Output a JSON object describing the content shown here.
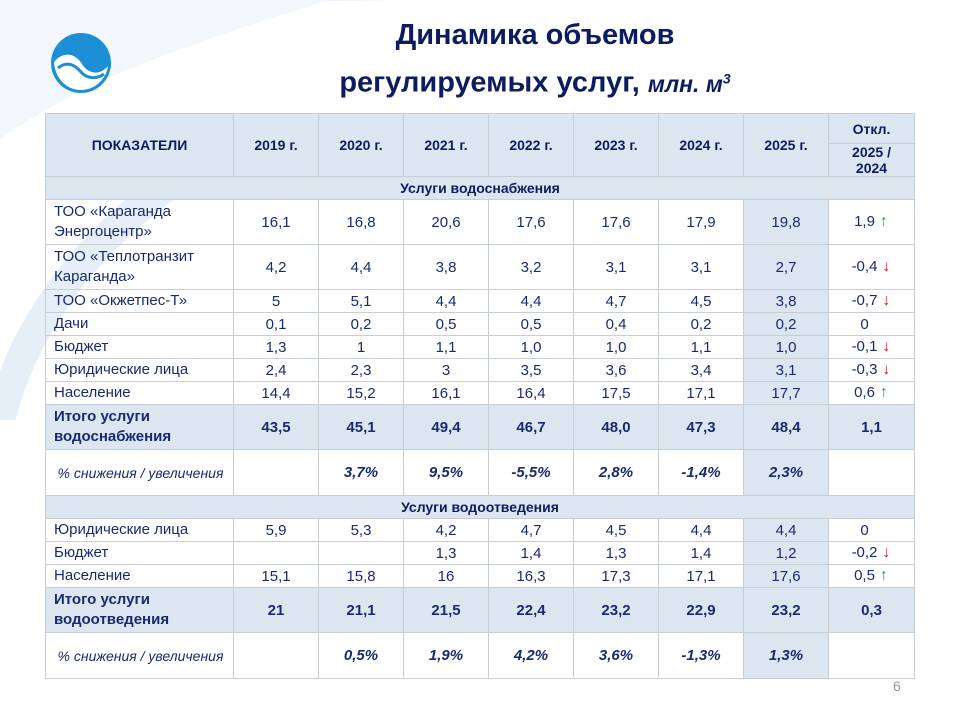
{
  "title": {
    "line1": "Динамика объемов",
    "line2": "регулируемых услуг,",
    "unit": "млн. м",
    "unit_sup": "3"
  },
  "colors": {
    "header_bg": "#dce6f1",
    "text": "#1a2a6e",
    "up": "#1aa13a",
    "down": "#d01818"
  },
  "header": {
    "indicator": "ПОКАЗАТЕЛИ",
    "years": [
      "2019 г.",
      "2020 г.",
      "2021 г.",
      "2022 г.",
      "2023 г.",
      "2024 г.",
      "2025 г."
    ],
    "dev_top": "Откл.",
    "dev_bottom": "2025 / 2024"
  },
  "sections": [
    {
      "title": "Услуги водоснабжения",
      "rows": [
        {
          "label": "ТОО «Караганда Энергоцентр»",
          "values": [
            "16,1",
            "16,8",
            "20,6",
            "17,6",
            "17,6",
            "17,9",
            "19,8"
          ],
          "dev": "1,9",
          "trend": "up"
        },
        {
          "label": "ТОО «Теплотранзит Караганда»",
          "values": [
            "4,2",
            "4,4",
            "3,8",
            "3,2",
            "3,1",
            "3,1",
            "2,7"
          ],
          "dev": "-0,4",
          "trend": "down"
        },
        {
          "label": "ТОО «Окжетпес-Т»",
          "values": [
            "5",
            "5,1",
            "4,4",
            "4,4",
            "4,7",
            "4,5",
            "3,8"
          ],
          "dev": "-0,7",
          "trend": "down"
        },
        {
          "label": "Дачи",
          "values": [
            "0,1",
            "0,2",
            "0,5",
            "0,5",
            "0,4",
            "0,2",
            "0,2"
          ],
          "dev": "0",
          "trend": ""
        },
        {
          "label": "Бюджет",
          "values": [
            "1,3",
            "1",
            "1,1",
            "1,0",
            "1,0",
            "1,1",
            "1,0"
          ],
          "dev": "-0,1",
          "trend": "down"
        },
        {
          "label": "Юридические лица",
          "values": [
            "2,4",
            "2,3",
            "3",
            "3,5",
            "3,6",
            "3,4",
            "3,1"
          ],
          "dev": "-0,3",
          "trend": "down"
        },
        {
          "label": "Население",
          "values": [
            "14,4",
            "15,2",
            "16,1",
            "16,4",
            "17,5",
            "17,1",
            "17,7"
          ],
          "dev": "0,6",
          "trend": "up"
        }
      ],
      "total": {
        "label": "Итого услуги водоснабжения",
        "values": [
          "43,5",
          "45,1",
          "49,4",
          "46,7",
          "48,0",
          "47,3",
          "48,4"
        ],
        "dev": "1,1"
      },
      "pct": {
        "label": "% снижения / увеличения",
        "values": [
          "",
          "3,7%",
          "9,5%",
          "-5,5%",
          "2,8%",
          "-1,4%",
          "2,3%"
        ]
      }
    },
    {
      "title": "Услуги водоотведения",
      "rows": [
        {
          "label": "Юридические лица",
          "values": [
            "5,9",
            "5,3",
            "4,2",
            "4,7",
            "4,5",
            "4,4",
            "4,4"
          ],
          "dev": "0",
          "trend": ""
        },
        {
          "label": "Бюджет",
          "values": [
            "",
            "",
            "1,3",
            "1,4",
            "1,3",
            "1,4",
            "1,2"
          ],
          "dev": "-0,2",
          "trend": "down"
        },
        {
          "label": "Население",
          "values": [
            "15,1",
            "15,8",
            "16",
            "16,3",
            "17,3",
            "17,1",
            "17,6"
          ],
          "dev": "0,5",
          "trend": "up"
        }
      ],
      "total": {
        "label": "Итого услуги водоотведения",
        "values": [
          "21",
          "21,1",
          "21,5",
          "22,4",
          "23,2",
          "22,9",
          "23,2"
        ],
        "dev": "0,3"
      },
      "pct": {
        "label": "% снижения / увеличения",
        "values": [
          "",
          "0,5%",
          "1,9%",
          "4,2%",
          "3,6%",
          "-1,3%",
          "1,3%"
        ]
      }
    }
  ],
  "page_number": "6"
}
